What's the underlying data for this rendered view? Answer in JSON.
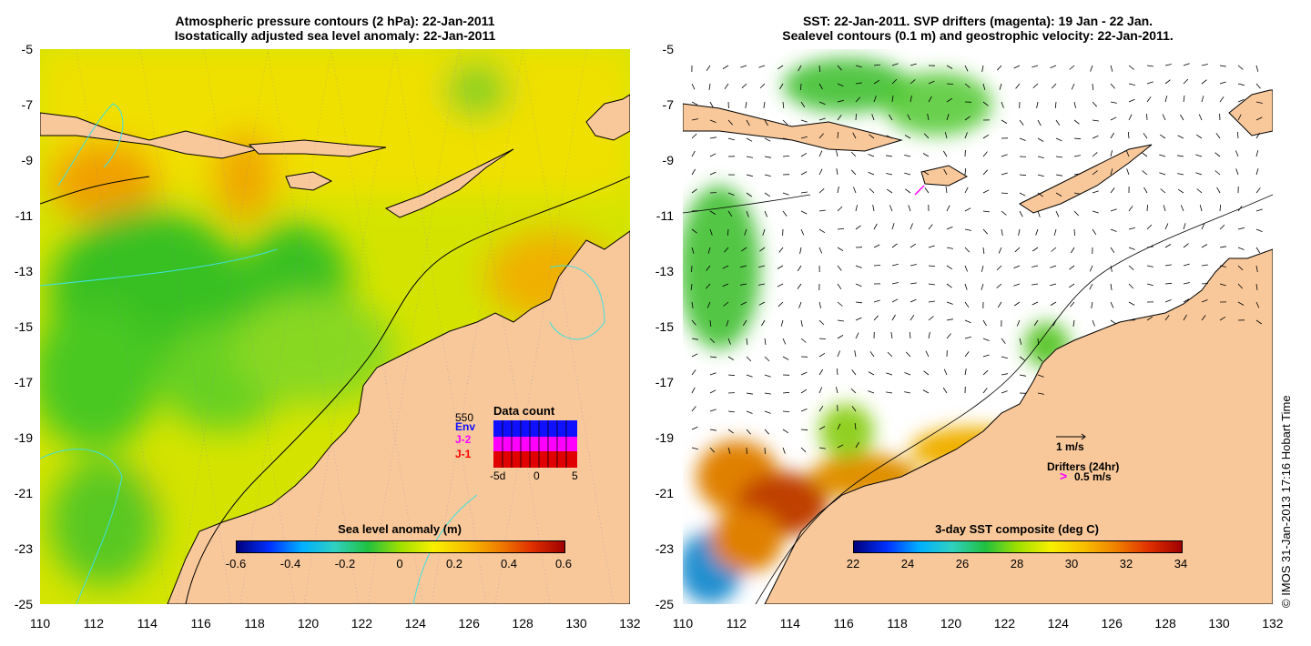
{
  "left_panel": {
    "title_line1": "Atmospheric pressure contours (2 hPa): 22-Jan-2011",
    "title_line2": "Isostatically adjusted sea level anomaly: 22-Jan-2011",
    "colorbar_label": "Sea level anomaly (m)",
    "colorbar_ticks": [
      "-0.6",
      "-0.4",
      "-0.2",
      "0",
      "0.2",
      "0.4",
      "0.6"
    ],
    "data_count": {
      "title": "Data count",
      "max_label": "550",
      "sources": [
        "Env",
        "J-2",
        "J-1"
      ],
      "source_colors": [
        "#1010ff",
        "#ff00ff",
        "#ff0000"
      ],
      "x_ticks": [
        "-5d",
        "0",
        "5"
      ]
    }
  },
  "right_panel": {
    "title_line1": "SST: 22-Jan-2011. SVP drifters (magenta): 19 Jan - 22 Jan.",
    "title_line2": "Sealevel contours (0.1 m) and geostrophic velocity: 22-Jan-2011.",
    "colorbar_label": "3-day SST composite (deg C)",
    "colorbar_ticks": [
      "22",
      "24",
      "26",
      "28",
      "30",
      "32",
      "34"
    ],
    "velocity_scale": "1 m/s",
    "drifters_label": "Drifters (24hr)",
    "drifter_scale": "0.5 m/s"
  },
  "axes": {
    "lat_ticks": [
      "-5",
      "-7",
      "-9",
      "-11",
      "-13",
      "-15",
      "-17",
      "-19",
      "-21",
      "-23",
      "-25"
    ],
    "lon_ticks": [
      "110",
      "112",
      "114",
      "116",
      "118",
      "120",
      "122",
      "124",
      "126",
      "128",
      "130",
      "132"
    ]
  },
  "credit": "© IMOS 31-Jan-2013 17:16 Hobart Time",
  "colors": {
    "land": "#f8c89a",
    "contour": "#000000",
    "shoreline_contour": "#40e0e0"
  }
}
